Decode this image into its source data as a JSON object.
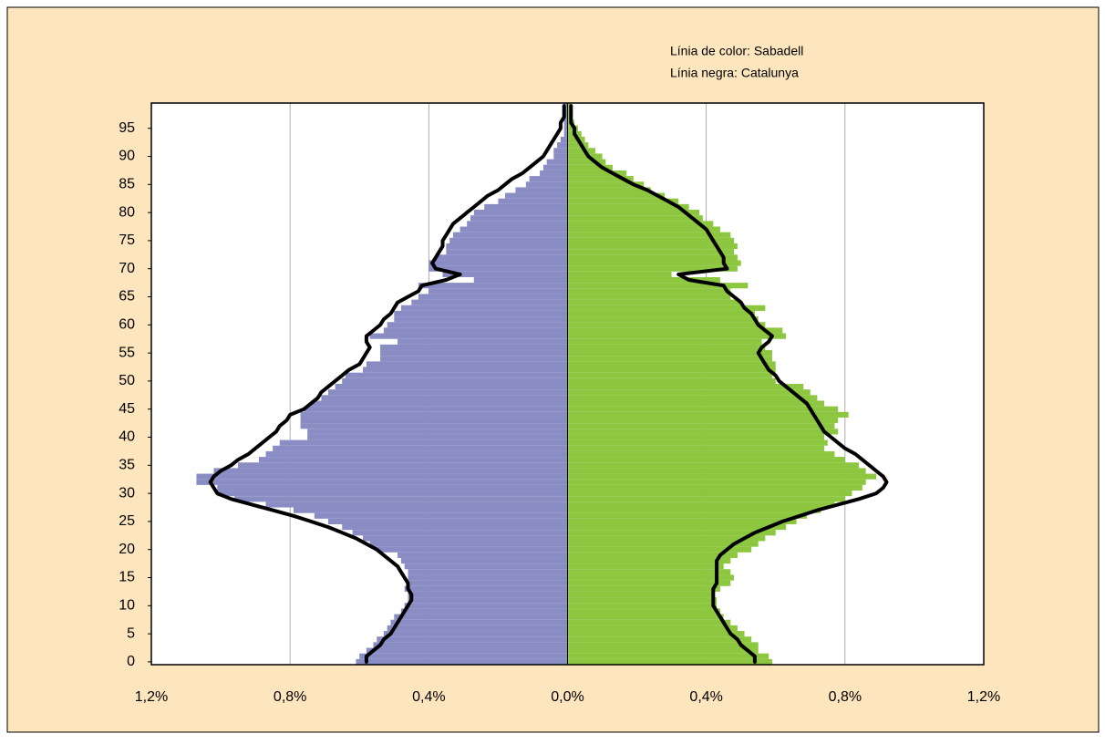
{
  "chart_data": {
    "type": "bar",
    "orientation": "horizontal",
    "annotations": [
      "Línia de color: Sabadell",
      "Línia negra: Catalunya"
    ],
    "y": [
      0,
      1,
      2,
      3,
      4,
      5,
      6,
      7,
      8,
      9,
      10,
      11,
      12,
      13,
      14,
      15,
      16,
      17,
      18,
      19,
      20,
      21,
      22,
      23,
      24,
      25,
      26,
      27,
      28,
      29,
      30,
      31,
      32,
      33,
      34,
      35,
      36,
      37,
      38,
      39,
      40,
      41,
      42,
      43,
      44,
      45,
      46,
      47,
      48,
      49,
      50,
      51,
      52,
      53,
      54,
      55,
      56,
      57,
      58,
      59,
      60,
      61,
      62,
      63,
      64,
      65,
      66,
      67,
      68,
      69,
      70,
      71,
      72,
      73,
      74,
      75,
      76,
      77,
      78,
      79,
      80,
      81,
      82,
      83,
      84,
      85,
      86,
      87,
      88,
      89,
      90,
      91,
      92,
      93,
      94,
      95,
      96,
      97,
      98,
      99
    ],
    "ylim": [
      -0.5,
      99.5
    ],
    "yticks": [
      0,
      5,
      10,
      15,
      20,
      25,
      30,
      35,
      40,
      45,
      50,
      55,
      60,
      65,
      70,
      75,
      80,
      85,
      90,
      95
    ],
    "xlim": [
      -1.2,
      1.2
    ],
    "xticks": [
      {
        "value": -1.2,
        "label": "1,2%"
      },
      {
        "value": -0.8,
        "label": "0,8%"
      },
      {
        "value": -0.4,
        "label": "0,4%"
      },
      {
        "value": 0,
        "label": "0,0%"
      },
      {
        "value": 0.4,
        "label": "0,4%"
      },
      {
        "value": 0.8,
        "label": "0,8%"
      },
      {
        "value": 1.2,
        "label": "1,2%"
      }
    ],
    "grid": true,
    "series": [
      {
        "kind": "bar",
        "color": "#8a8cc4",
        "values": [
          -0.61,
          -0.6,
          -0.58,
          -0.56,
          -0.55,
          -0.53,
          -0.52,
          -0.51,
          -0.5,
          -0.48,
          -0.47,
          -0.46,
          -0.46,
          -0.47,
          -0.46,
          -0.46,
          -0.46,
          -0.47,
          -0.48,
          -0.49,
          -0.55,
          -0.57,
          -0.59,
          -0.62,
          -0.65,
          -0.69,
          -0.73,
          -0.79,
          -0.87,
          -0.96,
          -1.01,
          -1.01,
          -1.07,
          -1.07,
          -1.02,
          -0.95,
          -0.89,
          -0.87,
          -0.85,
          -0.83,
          -0.75,
          -0.75,
          -0.77,
          -0.77,
          -0.77,
          -0.76,
          -0.74,
          -0.71,
          -0.69,
          -0.67,
          -0.65,
          -0.64,
          -0.59,
          -0.58,
          -0.54,
          -0.54,
          -0.54,
          -0.49,
          -0.57,
          -0.53,
          -0.52,
          -0.5,
          -0.5,
          -0.48,
          -0.45,
          -0.43,
          -0.4,
          -0.43,
          -0.27,
          -0.36,
          -0.4,
          -0.4,
          -0.38,
          -0.35,
          -0.35,
          -0.34,
          -0.33,
          -0.31,
          -0.29,
          -0.28,
          -0.27,
          -0.24,
          -0.2,
          -0.18,
          -0.15,
          -0.12,
          -0.11,
          -0.08,
          -0.07,
          -0.06,
          -0.04,
          -0.04,
          -0.03,
          -0.02,
          -0.01,
          -0.01,
          -0.01,
          -0.01,
          -0.01,
          -0.01
        ]
      },
      {
        "kind": "bar",
        "color": "#8dc63f",
        "values": [
          0.59,
          0.58,
          0.55,
          0.55,
          0.53,
          0.51,
          0.49,
          0.47,
          0.45,
          0.44,
          0.43,
          0.43,
          0.42,
          0.44,
          0.47,
          0.48,
          0.47,
          0.45,
          0.47,
          0.49,
          0.53,
          0.55,
          0.57,
          0.6,
          0.63,
          0.66,
          0.69,
          0.73,
          0.77,
          0.8,
          0.82,
          0.85,
          0.86,
          0.89,
          0.86,
          0.84,
          0.8,
          0.77,
          0.74,
          0.75,
          0.74,
          0.78,
          0.77,
          0.78,
          0.81,
          0.78,
          0.74,
          0.72,
          0.7,
          0.68,
          0.6,
          0.59,
          0.6,
          0.6,
          0.59,
          0.59,
          0.57,
          0.56,
          0.63,
          0.62,
          0.57,
          0.55,
          0.54,
          0.57,
          0.5,
          0.47,
          0.47,
          0.52,
          0.44,
          0.3,
          0.49,
          0.5,
          0.49,
          0.48,
          0.49,
          0.48,
          0.47,
          0.44,
          0.42,
          0.39,
          0.38,
          0.35,
          0.32,
          0.28,
          0.24,
          0.22,
          0.19,
          0.17,
          0.13,
          0.11,
          0.1,
          0.08,
          0.06,
          0.05,
          0.04,
          0.03,
          0.02,
          0.01,
          0.01,
          0.01
        ]
      },
      {
        "kind": "line",
        "color": "#000000",
        "values": [
          -0.58,
          -0.58,
          -0.56,
          -0.54,
          -0.53,
          -0.51,
          -0.5,
          -0.49,
          -0.48,
          -0.47,
          -0.46,
          -0.45,
          -0.45,
          -0.46,
          -0.46,
          -0.47,
          -0.48,
          -0.49,
          -0.51,
          -0.53,
          -0.55,
          -0.58,
          -0.61,
          -0.65,
          -0.69,
          -0.74,
          -0.79,
          -0.85,
          -0.91,
          -0.97,
          -1.01,
          -1.02,
          -1.03,
          -1.02,
          -1.0,
          -0.97,
          -0.95,
          -0.92,
          -0.9,
          -0.88,
          -0.86,
          -0.84,
          -0.83,
          -0.81,
          -0.8,
          -0.76,
          -0.74,
          -0.72,
          -0.71,
          -0.69,
          -0.67,
          -0.65,
          -0.63,
          -0.6,
          -0.59,
          -0.58,
          -0.57,
          -0.58,
          -0.58,
          -0.56,
          -0.54,
          -0.53,
          -0.51,
          -0.5,
          -0.49,
          -0.46,
          -0.43,
          -0.42,
          -0.35,
          -0.31,
          -0.38,
          -0.39,
          -0.38,
          -0.37,
          -0.36,
          -0.36,
          -0.35,
          -0.34,
          -0.33,
          -0.31,
          -0.29,
          -0.27,
          -0.25,
          -0.23,
          -0.2,
          -0.18,
          -0.16,
          -0.13,
          -0.11,
          -0.09,
          -0.07,
          -0.06,
          -0.05,
          -0.04,
          -0.03,
          -0.02,
          -0.02,
          -0.01,
          -0.01,
          -0.01
        ]
      },
      {
        "kind": "line",
        "color": "#000000",
        "values": [
          0.54,
          0.54,
          0.52,
          0.5,
          0.49,
          0.47,
          0.46,
          0.45,
          0.44,
          0.43,
          0.42,
          0.42,
          0.42,
          0.42,
          0.43,
          0.43,
          0.43,
          0.43,
          0.43,
          0.44,
          0.46,
          0.48,
          0.51,
          0.54,
          0.58,
          0.62,
          0.67,
          0.72,
          0.78,
          0.84,
          0.89,
          0.91,
          0.92,
          0.91,
          0.89,
          0.87,
          0.85,
          0.83,
          0.8,
          0.78,
          0.76,
          0.74,
          0.73,
          0.72,
          0.71,
          0.7,
          0.69,
          0.67,
          0.65,
          0.63,
          0.61,
          0.6,
          0.58,
          0.57,
          0.56,
          0.55,
          0.56,
          0.58,
          0.59,
          0.57,
          0.55,
          0.54,
          0.53,
          0.51,
          0.5,
          0.48,
          0.46,
          0.45,
          0.35,
          0.32,
          0.46,
          0.45,
          0.45,
          0.44,
          0.43,
          0.42,
          0.41,
          0.4,
          0.38,
          0.36,
          0.34,
          0.32,
          0.29,
          0.26,
          0.23,
          0.19,
          0.16,
          0.13,
          0.1,
          0.08,
          0.06,
          0.05,
          0.04,
          0.03,
          0.02,
          0.02,
          0.01,
          0.01,
          0.01,
          0.01
        ]
      }
    ]
  }
}
